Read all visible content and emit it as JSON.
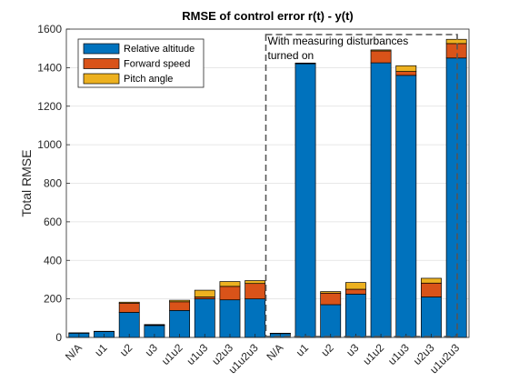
{
  "chart_data": {
    "type": "bar",
    "stacked": true,
    "title": "RMSE of control error r(t) - y(t)",
    "xlabel": "",
    "ylabel": "Total RMSE",
    "ylim": [
      0,
      1600
    ],
    "yticks": [
      0,
      200,
      400,
      600,
      800,
      1000,
      1200,
      1400,
      1600
    ],
    "grid": "y",
    "legend_position": "top-left",
    "categories": [
      "N/A",
      "u1",
      "u2",
      "u3",
      "u1u2",
      "u1u3",
      "u2u3",
      "u1u2u3",
      "N/A",
      "u1",
      "u2",
      "u3",
      "u1u2",
      "u1u3",
      "u2u3",
      "u1u2u3"
    ],
    "series": [
      {
        "name": "Relative altitude",
        "color": "#0072BD",
        "values": [
          22,
          30,
          130,
          62,
          140,
          200,
          195,
          200,
          20,
          1420,
          170,
          225,
          1425,
          1360,
          210,
          1450
        ]
      },
      {
        "name": "Forward speed",
        "color": "#D95319",
        "values": [
          1,
          1,
          48,
          3,
          45,
          10,
          70,
          80,
          1,
          2,
          60,
          25,
          62,
          20,
          72,
          75
        ]
      },
      {
        "name": "Pitch angle",
        "color": "#EDB120",
        "values": [
          1,
          1,
          5,
          2,
          8,
          35,
          25,
          15,
          1,
          2,
          8,
          35,
          5,
          30,
          25,
          22
        ]
      }
    ],
    "annotation": {
      "text_lines": [
        "With measuring disturbances",
        "turned on"
      ],
      "from_category_index": 8,
      "to_category_index": 15
    }
  }
}
